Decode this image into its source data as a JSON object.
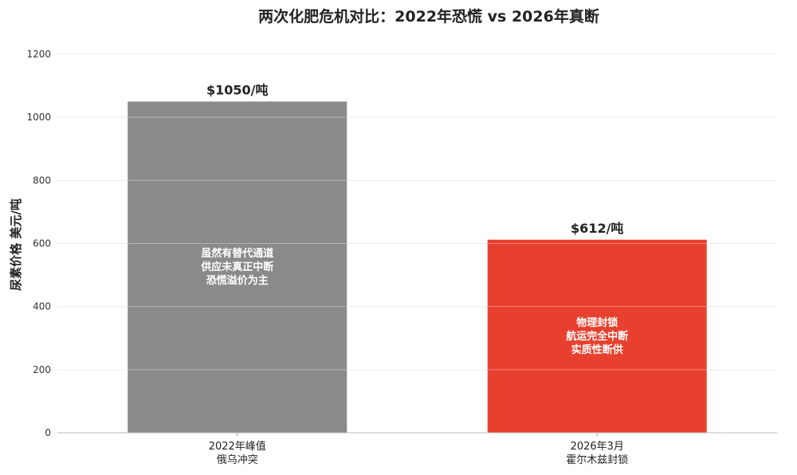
{
  "chart_data": {
    "type": "bar",
    "title": "两次化肥危机对比：2022年恐慌 vs 2026年真断",
    "xlabel": "",
    "ylabel": "尿素价格 美元/吨",
    "ylim": [
      0,
      1200
    ],
    "yticks": [
      0,
      200,
      400,
      600,
      800,
      1000,
      1200
    ],
    "grid": true,
    "legend": "none",
    "categories": [
      [
        "2022年峰值",
        "俄乌冲突"
      ],
      [
        "2026年3月",
        "霍尔木兹封锁"
      ]
    ],
    "values": [
      1050,
      612
    ],
    "data_labels": [
      "$1050/吨",
      "$612/吨"
    ],
    "colors": [
      "#8a8a8a",
      "#e8402e"
    ],
    "annotations": [
      [
        "虽然有替代通道",
        "供应未真正中断",
        "恐慌溢价为主"
      ],
      [
        "物理封锁",
        "航运完全中断",
        "实质性断供"
      ]
    ]
  }
}
